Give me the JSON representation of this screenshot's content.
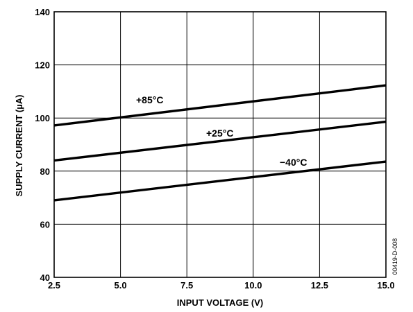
{
  "chart_data": {
    "type": "line",
    "xlabel": "INPUT VOLTAGE (V)",
    "ylabel": "SUPPLY CURRENT (µA)",
    "xlim": [
      2.5,
      15.0
    ],
    "ylim": [
      40,
      140
    ],
    "x_ticks": [
      "2.5",
      "5.0",
      "7.5",
      "10.0",
      "12.5",
      "15.0"
    ],
    "y_ticks": [
      "40",
      "60",
      "80",
      "100",
      "120",
      "140"
    ],
    "grid": true,
    "series": [
      {
        "name": "+85°C",
        "x": [
          2.5,
          15.0
        ],
        "y": [
          97.2,
          112.3
        ]
      },
      {
        "name": "+25°C",
        "x": [
          2.5,
          15.0
        ],
        "y": [
          84.0,
          98.6
        ]
      },
      {
        "name": "−40°C",
        "x": [
          2.5,
          15.0
        ],
        "y": [
          69.0,
          83.6
        ]
      }
    ],
    "figure_id": "00419-D-008"
  }
}
